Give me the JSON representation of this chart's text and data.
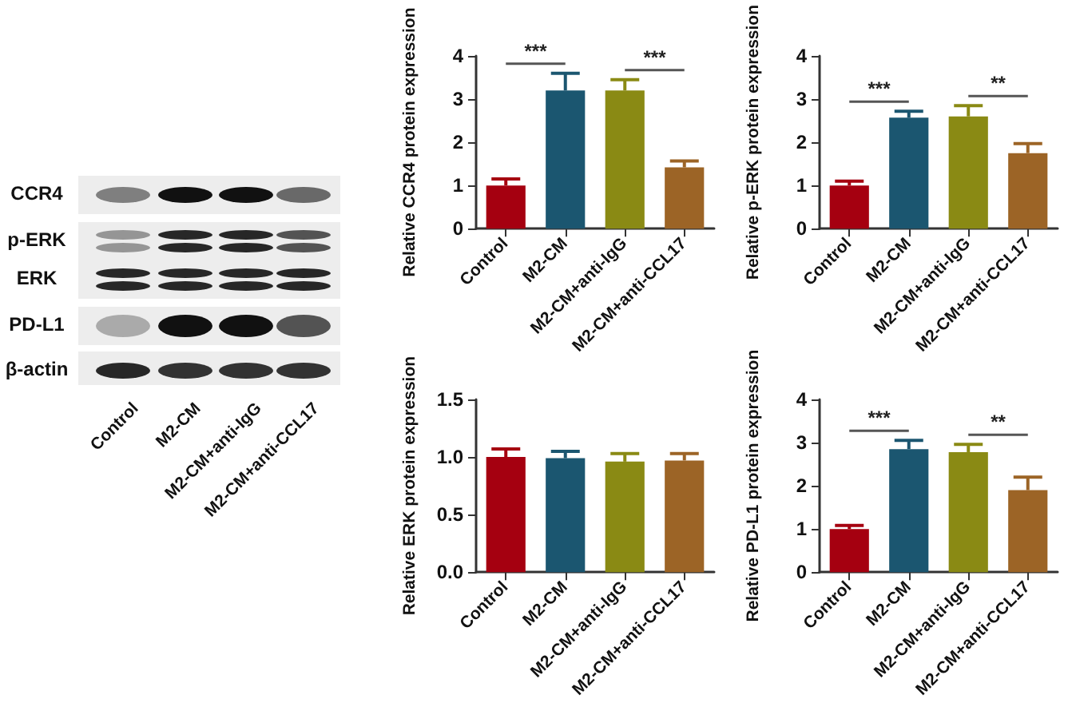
{
  "chart_data": [
    {
      "type": "other",
      "categories": [
        "Control",
        "M2-CM",
        "M2-CM+anti-IgG",
        "M2-CM+anti-CCL17"
      ],
      "annotations": [
        "CCR4",
        "p-ERK",
        "ERK",
        "PD-L1",
        "β-actin"
      ]
    },
    {
      "type": "bar",
      "ylabel": "Relative CCR4 protein expression",
      "categories": [
        "Control",
        "M2-CM",
        "M2-CM+anti-IgG",
        "M2-CM+anti-CCL17"
      ],
      "values": [
        1.0,
        3.2,
        3.2,
        1.42
      ],
      "colors": [
        "#a50010",
        "#1b5670",
        "#8a8a14",
        "#9c6426"
      ],
      "errors": [
        [
          1.0,
          1.15
        ],
        [
          3.2,
          3.6
        ],
        [
          3.2,
          3.45
        ],
        [
          1.42,
          1.57
        ]
      ],
      "ylim": [
        0,
        4
      ],
      "yticks": [
        0,
        1,
        2,
        3,
        4
      ],
      "annotations": [
        "***",
        "***"
      ]
    },
    {
      "type": "bar",
      "ylabel": "Relative p-ERK protein expression",
      "categories": [
        "Control",
        "M2-CM",
        "M2-CM+anti-IgG",
        "M2-CM+anti-CCL17"
      ],
      "values": [
        1.0,
        2.57,
        2.6,
        1.75
      ],
      "colors": [
        "#a50010",
        "#1b5670",
        "#8a8a14",
        "#9c6426"
      ],
      "errors": [
        [
          1.0,
          1.1
        ],
        [
          2.57,
          2.72
        ],
        [
          2.6,
          2.85
        ],
        [
          1.75,
          1.97
        ]
      ],
      "ylim": [
        0,
        4
      ],
      "yticks": [
        0,
        1,
        2,
        3,
        4
      ],
      "annotations": [
        "***",
        "**"
      ]
    },
    {
      "type": "bar",
      "ylabel": "Relative ERK protein expression",
      "categories": [
        "Control",
        "M2-CM",
        "M2-CM+anti-IgG",
        "M2-CM+anti-CCL17"
      ],
      "values": [
        1.0,
        0.99,
        0.96,
        0.97
      ],
      "colors": [
        "#a50010",
        "#1b5670",
        "#8a8a14",
        "#9c6426"
      ],
      "errors": [
        [
          1.0,
          1.07
        ],
        [
          0.99,
          1.05
        ],
        [
          0.96,
          1.03
        ],
        [
          0.97,
          1.03
        ]
      ],
      "ylim": [
        0,
        1.5
      ],
      "yticks": [
        {
          "value": 0,
          "label": "0.0"
        },
        0.5,
        {
          "value": 1,
          "label": "1.0"
        },
        1.5
      ]
    },
    {
      "type": "bar",
      "ylabel": "Relative PD-L1 protein expression",
      "categories": [
        "Control",
        "M2-CM",
        "M2-CM+anti-IgG",
        "M2-CM+anti-CCL17"
      ],
      "values": [
        1.0,
        2.85,
        2.78,
        1.9
      ],
      "colors": [
        "#a50010",
        "#1b5670",
        "#8a8a14",
        "#9c6426"
      ],
      "errors": [
        [
          1.0,
          1.08
        ],
        [
          2.85,
          3.05
        ],
        [
          2.78,
          2.96
        ],
        [
          1.9,
          2.2
        ]
      ],
      "ylim": [
        0,
        4
      ],
      "yticks": [
        0,
        1,
        2,
        3,
        4
      ],
      "annotations": [
        "***",
        "**"
      ]
    }
  ]
}
